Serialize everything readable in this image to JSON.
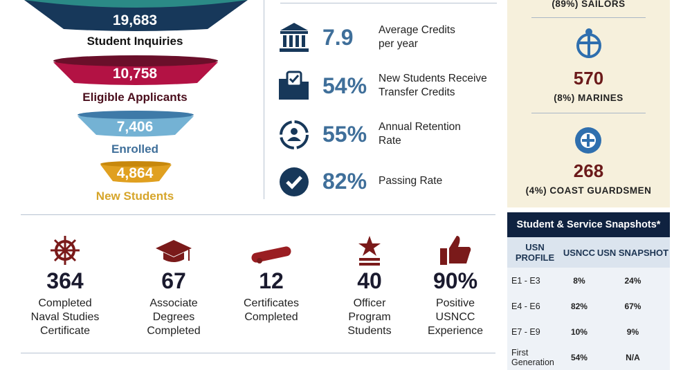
{
  "funnel": [
    {
      "value": "19,683",
      "label": "Student Inquiries",
      "color": "#17385a",
      "top": "#2b8a86",
      "labelColor": "#111"
    },
    {
      "value": "10,758",
      "label": "Eligible Applicants",
      "color": "#b31244",
      "top": "#6a0f2a",
      "labelColor": "#4a0e1c"
    },
    {
      "value": "7,406",
      "label": "Enrolled",
      "color": "#74b2d4",
      "top": "#3e7aa8",
      "labelColor": "#3f6f9a"
    },
    {
      "value": "4,864",
      "label": "New Students",
      "color": "#e0a020",
      "top": "#c7880c",
      "labelColor": "#d6a52a"
    }
  ],
  "metrics": [
    {
      "icon": "bank-icon",
      "value": "7.9",
      "label1": "Average Credits",
      "label2": "per year"
    },
    {
      "icon": "folder-check-icon",
      "value": "54%",
      "label1": "New Students Receive",
      "label2": "Transfer Credits"
    },
    {
      "icon": "retention-cycle-icon",
      "value": "55%",
      "label1": "Annual Retention",
      "label2": "Rate"
    },
    {
      "icon": "checkmark-circle-icon",
      "value": "82%",
      "label1": "Passing Rate",
      "label2": ""
    }
  ],
  "services": [
    {
      "icon": "",
      "value": "",
      "label": "(89%) SAILORS"
    },
    {
      "icon": "marine-emblem-icon",
      "value": "570",
      "label": "(8%) MARINES"
    },
    {
      "icon": "coast-guard-emblem-icon",
      "value": "268",
      "label": "(4%) COAST GUARDSMEN"
    }
  ],
  "stats": [
    {
      "icon": "ship-wheel-icon",
      "value": "364",
      "l1": "Completed",
      "l2": "Naval Studies",
      "l3": "Certificate"
    },
    {
      "icon": "graduation-cap-icon",
      "value": "67",
      "l1": "Associate",
      "l2": "Degrees",
      "l3": "Completed"
    },
    {
      "icon": "diploma-scroll-icon",
      "value": "12",
      "l1": "Certificates",
      "l2": "Completed",
      "l3": ""
    },
    {
      "icon": "officer-star-icon",
      "value": "40",
      "l1": "Officer",
      "l2": "Program",
      "l3": "Students"
    },
    {
      "icon": "thumbs-up-icon",
      "value": "90%",
      "l1": "Positive",
      "l2": "USNCC",
      "l3": "Experience"
    }
  ],
  "table": {
    "title": "Student & Service Snapshots*",
    "headers": [
      "USN PROFILE",
      "USNCC",
      "USN SNAPSHOT"
    ],
    "rows": [
      [
        "E1 - E3",
        "8%",
        "24%"
      ],
      [
        "E4 - E6",
        "82%",
        "67%"
      ],
      [
        "E7 - E9",
        "10%",
        "9%"
      ],
      [
        "First Generation",
        "54%",
        "N/A"
      ]
    ]
  },
  "colors": {
    "navy": "#17385a",
    "accent_blue": "#3f6f9a",
    "maroon": "#6b1a1a",
    "panel": "#f6f0dc"
  }
}
